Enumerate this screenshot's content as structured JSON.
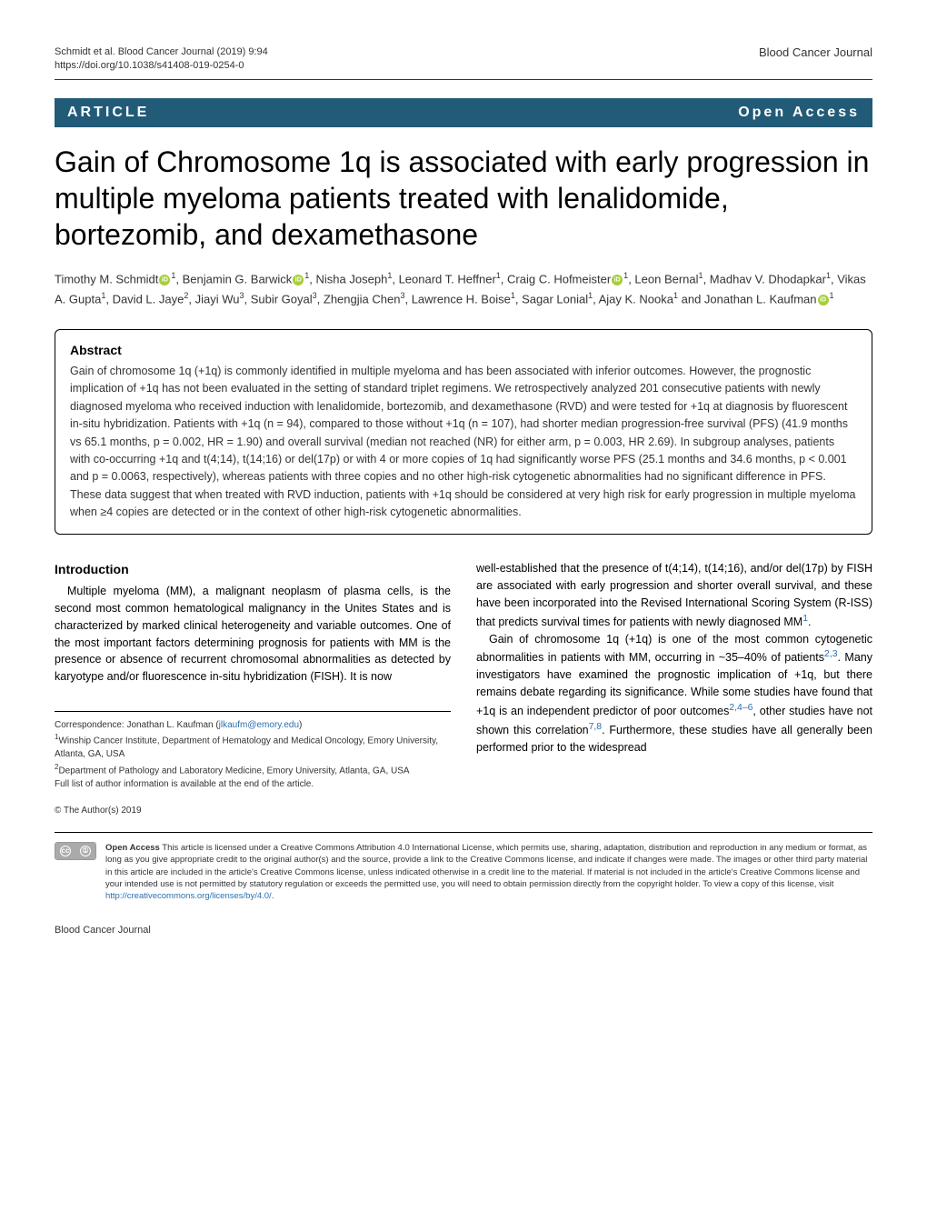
{
  "header": {
    "citation": "Schmidt et al. Blood Cancer Journal           (2019) 9:94",
    "doi": "https://doi.org/10.1038/s41408-019-0254-0",
    "journal": "Blood Cancer Journal"
  },
  "article_bar": {
    "label": "ARTICLE",
    "open_access": "Open Access"
  },
  "title": "Gain of Chromosome 1q is associated with early progression in multiple myeloma patients treated with lenalidomide, bortezomib, and dexamethasone",
  "authors": {
    "a1": "Timothy M. Schmidt",
    "a1_aff": "1",
    "a2": "Benjamin G. Barwick",
    "a2_aff": "1",
    "a3": "Nisha Joseph",
    "a3_aff": "1",
    "a4": "Leonard T. Heffner",
    "a4_aff": "1",
    "a5": "Craig C. Hofmeister",
    "a5_aff": "1",
    "a6": "Leon Bernal",
    "a6_aff": "1",
    "a7": "Madhav V. Dhodapkar",
    "a7_aff": "1",
    "a8": "Vikas A. Gupta",
    "a8_aff": "1",
    "a9": "David L. Jaye",
    "a9_aff": "2",
    "a10": "Jiayi Wu",
    "a10_aff": "3",
    "a11": "Subir Goyal",
    "a11_aff": "3",
    "a12": "Zhengjia Chen",
    "a12_aff": "3",
    "a13": "Lawrence H. Boise",
    "a13_aff": "1",
    "a14": "Sagar Lonial",
    "a14_aff": "1",
    "a15": "Ajay K. Nooka",
    "a15_aff": "1",
    "a16": "Jonathan L. Kaufman",
    "a16_aff": "1"
  },
  "abstract": {
    "heading": "Abstract",
    "text": "Gain of chromosome 1q (+1q) is commonly identified in multiple myeloma and has been associated with inferior outcomes. However, the prognostic implication of +1q has not been evaluated in the setting of standard triplet regimens. We retrospectively analyzed 201 consecutive patients with newly diagnosed myeloma who received induction with lenalidomide, bortezomib, and dexamethasone (RVD) and were tested for +1q at diagnosis by fluorescent in-situ hybridization. Patients with +1q (n = 94), compared to those without +1q (n = 107), had shorter median progression-free survival (PFS) (41.9 months vs 65.1 months, p = 0.002, HR = 1.90) and overall survival (median not reached (NR) for either arm, p = 0.003, HR 2.69). In subgroup analyses, patients with co-occurring +1q and t(4;14), t(14;16) or del(17p) or with 4 or more copies of 1q had significantly worse PFS (25.1 months and 34.6 months, p < 0.001 and p = 0.0063, respectively), whereas patients with three copies and no other high-risk cytogenetic abnormalities had no significant difference in PFS. These data suggest that when treated with RVD induction, patients with +1q should be considered at very high risk for early progression in multiple myeloma when ≥4 copies are detected or in the context of other high-risk cytogenetic abnormalities."
  },
  "introduction": {
    "heading": "Introduction",
    "left_para": "Multiple myeloma (MM), a malignant neoplasm of plasma cells, is the second most common hematological malignancy in the Unites States and is characterized by marked clinical heterogeneity and variable outcomes. One of the most important factors determining prognosis for patients with MM is the presence or absence of recurrent chromosomal abnormalities as detected by karyotype and/or fluorescence in-situ hybridization (FISH). It is now",
    "right_para1": "well-established that the presence of t(4;14), t(14;16), and/or del(17p) by FISH are associated with early progression and shorter overall survival, and these have been incorporated into the Revised International Scoring System (R-ISS) that predicts survival times for patients with newly diagnosed MM",
    "right_para1_ref": "1",
    "right_para2a": "Gain of chromosome 1q (+1q) is one of the most common cytogenetic abnormalities in patients with MM, occurring in ~35–40% of patients",
    "right_para2_ref1": "2,3",
    "right_para2b": ". Many investigators have examined the prognostic implication of +1q, but there remains debate regarding its significance. While some studies have found that +1q is an independent predictor of poor outcomes",
    "right_para2_ref2": "2,4–6",
    "right_para2c": ", other studies have not shown this correlation",
    "right_para2_ref3": "7,8",
    "right_para2d": ". Furthermore, these studies have all generally been performed prior to the widespread"
  },
  "footnotes": {
    "correspondence_label": "Correspondence: Jonathan L. Kaufman (",
    "correspondence_email": "jlkaufm@emory.edu",
    "correspondence_close": ")",
    "aff1": "Winship Cancer Institute, Department of Hematology and Medical Oncology, Emory University, Atlanta, GA, USA",
    "aff2": "Department of Pathology and Laboratory Medicine, Emory University, Atlanta, GA, USA",
    "full_list": "Full list of author information is available at the end of the article."
  },
  "copyright": "© The Author(s) 2019",
  "license": {
    "bold_label": "Open Access",
    "text": " This article is licensed under a Creative Commons Attribution 4.0 International License, which permits use, sharing, adaptation, distribution and reproduction in any medium or format, as long as you give appropriate credit to the original author(s) and the source, provide a link to the Creative Commons license, and indicate if changes were made. The images or other third party material in this article are included in the article's Creative Commons license, unless indicated otherwise in a credit line to the material. If material is not included in the article's Creative Commons license and your intended use is not permitted by statutory regulation or exceeds the permitted use, you will need to obtain permission directly from the copyright holder. To view a copy of this license, visit ",
    "link": "http://creativecommons.org/licenses/by/4.0/"
  },
  "footer": {
    "left": "Blood Cancer Journal"
  },
  "colors": {
    "bar": "#225b78",
    "orcid": "#a6ce39",
    "link": "#2a6fb0"
  }
}
